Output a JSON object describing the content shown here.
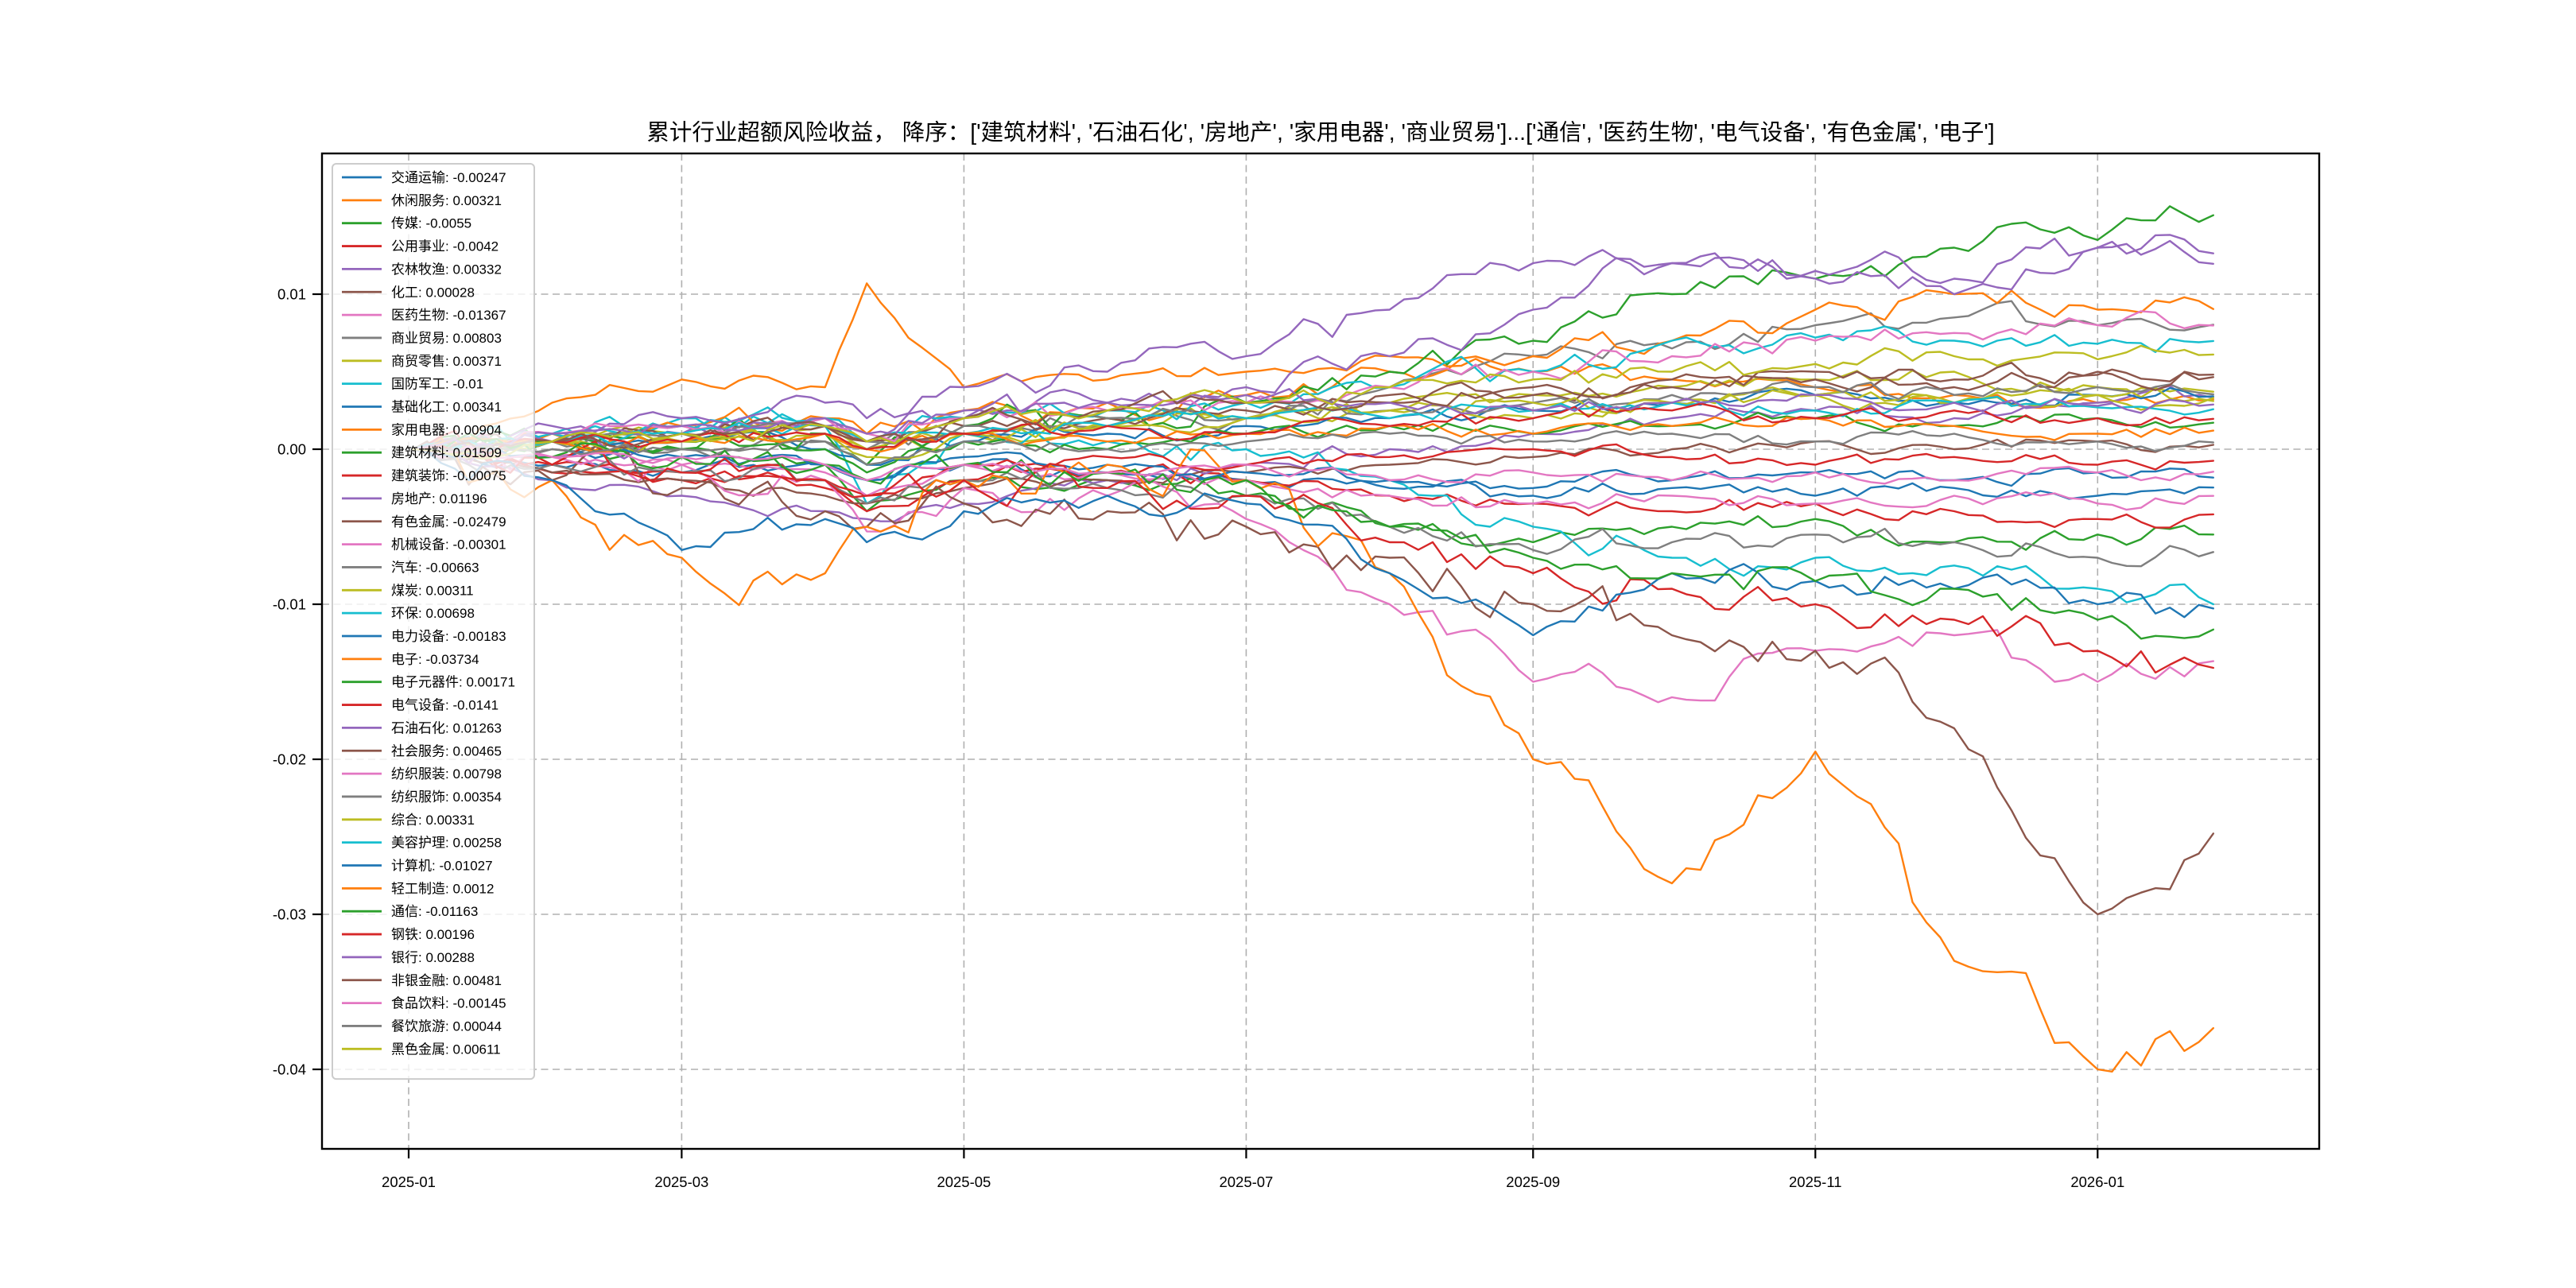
{
  "figure": {
    "background": "#ffffff",
    "plot_border_color": "#000000",
    "grid_color": "#b0b0b0",
    "legend_border_color": "#cccccc",
    "legend_background": "rgba(255,255,255,0.8)"
  },
  "chart_data": {
    "type": "line",
    "title": "累计行业超额风险收益， 降序：['建筑材料', '石油石化', '房地产', '家用电器', '商业贸易']...['通信', '医药生物', '电气设备', '有色金属', '电子']",
    "xlabel": "",
    "ylabel": "",
    "grid": true,
    "grid_style": "dashed",
    "legend_position": "upper-left",
    "ylim": [
      -0.0452,
      0.0192
    ],
    "x_tick_labels": [
      "2025-01",
      "2025-03",
      "2025-05",
      "2025-07",
      "2025-09",
      "2025-11",
      "2026-01"
    ],
    "x_tick_dates": [
      "2025-01-01",
      "2025-03-01",
      "2025-05-01",
      "2025-07-01",
      "2025-09-01",
      "2025-11-01",
      "2026-01-01"
    ],
    "y_ticks": [
      {
        "label": "0.01",
        "value": 0.01
      },
      {
        "label": "0.00",
        "value": 0.0
      },
      {
        "label": "-0.01",
        "value": -0.01
      },
      {
        "label": "-0.02",
        "value": -0.02
      },
      {
        "label": "-0.03",
        "value": -0.03
      },
      {
        "label": "-0.04",
        "value": -0.04
      }
    ],
    "x": [
      "2025-01-02",
      "2025-02-01",
      "2025-03-01",
      "2025-04-01",
      "2025-04-10",
      "2025-05-01",
      "2025-06-01",
      "2025-07-01",
      "2025-08-01",
      "2025-09-01",
      "2025-10-01",
      "2025-11-01",
      "2025-12-01",
      "2026-01-01",
      "2026-01-26"
    ],
    "series": [
      {
        "name": "交通运输",
        "legend_value": "-0.00247",
        "color": "#1f77b4",
        "values": [
          0,
          -0.001,
          -0.0015,
          -0.001,
          -0.002,
          -0.001,
          -0.0015,
          -0.002,
          -0.0025,
          -0.003,
          -0.0025,
          -0.003,
          -0.0025,
          -0.003,
          -0.00247
        ]
      },
      {
        "name": "休闲服务",
        "legend_value": "0.00321",
        "color": "#ff7f0e",
        "values": [
          0,
          0.003,
          0.0045,
          0.004,
          0.0107,
          0.004,
          0.0045,
          0.005,
          0.006,
          0.005,
          0.0045,
          0.004,
          0.0035,
          0.003,
          0.00321
        ]
      },
      {
        "name": "传媒",
        "legend_value": "-0.0055",
        "color": "#2ca02c",
        "values": [
          0,
          0.0005,
          0,
          -0.001,
          -0.004,
          -0.002,
          -0.002,
          -0.003,
          -0.005,
          -0.006,
          -0.005,
          -0.0045,
          -0.006,
          -0.0055,
          -0.0055
        ]
      },
      {
        "name": "公用事业",
        "legend_value": "-0.0042",
        "color": "#d62728",
        "values": [
          0,
          -0.0015,
          -0.002,
          -0.0025,
          -0.004,
          -0.002,
          -0.0015,
          -0.002,
          -0.003,
          -0.0035,
          -0.004,
          -0.0035,
          -0.004,
          -0.0045,
          -0.0042
        ]
      },
      {
        "name": "农林牧渔",
        "legend_value": "0.00332",
        "color": "#9467bd",
        "values": [
          0,
          -0.002,
          -0.003,
          -0.004,
          -0.0045,
          -0.0035,
          -0.002,
          -0.001,
          0,
          0.001,
          0.002,
          0.0025,
          0.002,
          0.003,
          0.00332
        ]
      },
      {
        "name": "化工",
        "legend_value": "0.00028",
        "color": "#8c564b",
        "values": [
          0,
          -0.0015,
          -0.002,
          -0.003,
          -0.0035,
          -0.0025,
          -0.002,
          -0.0015,
          -0.001,
          -0.0005,
          0,
          0.0005,
          0,
          0.0005,
          0.00028
        ]
      },
      {
        "name": "医药生物",
        "legend_value": "-0.01367",
        "color": "#e377c2",
        "values": [
          0,
          -0.0005,
          -0.001,
          -0.002,
          -0.0053,
          -0.0025,
          -0.003,
          -0.0045,
          -0.01,
          -0.015,
          -0.016,
          -0.013,
          -0.012,
          -0.015,
          -0.01367
        ]
      },
      {
        "name": "商业贸易",
        "legend_value": "0.00803",
        "color": "#7f7f7f",
        "values": [
          0,
          0,
          0,
          0.0005,
          0,
          0.001,
          0.0015,
          0.002,
          0.004,
          0.006,
          0.0065,
          0.008,
          0.0085,
          0.008,
          0.00803
        ]
      },
      {
        "name": "商贸零售",
        "legend_value": "0.00371",
        "color": "#bcbd22",
        "values": [
          0,
          0.0005,
          0.001,
          0.0015,
          0,
          0.001,
          0.0015,
          0.002,
          0.003,
          0.0035,
          0.004,
          0.0045,
          0.005,
          0.004,
          0.00371
        ]
      },
      {
        "name": "国防军工",
        "legend_value": "-0.01",
        "color": "#17becf",
        "values": [
          0,
          0.001,
          0.002,
          0.0015,
          -0.0035,
          0.001,
          0.0005,
          0,
          -0.002,
          -0.005,
          -0.007,
          -0.007,
          -0.0075,
          -0.009,
          -0.01
        ]
      },
      {
        "name": "基础化工",
        "legend_value": "0.00341",
        "color": "#1f77b4",
        "values": [
          0,
          0.0005,
          0.0005,
          0,
          -0.001,
          0.0005,
          0.001,
          0.0015,
          0.002,
          0.0025,
          0.003,
          0.0035,
          0.003,
          0.0035,
          0.00341
        ]
      },
      {
        "name": "家用电器",
        "legend_value": "0.00904",
        "color": "#ff7f0e",
        "values": [
          0,
          0.001,
          0.0015,
          0.002,
          0.001,
          0.0025,
          0.003,
          0.0035,
          0.005,
          0.006,
          0.007,
          0.009,
          0.01,
          0.009,
          0.00904
        ]
      },
      {
        "name": "建筑材料",
        "legend_value": "0.01509",
        "color": "#2ca02c",
        "values": [
          0,
          0.0005,
          0,
          0.001,
          -0.001,
          0.0015,
          0.002,
          0.003,
          0.005,
          0.007,
          0.01,
          0.011,
          0.013,
          0.0135,
          0.01509
        ]
      },
      {
        "name": "建筑装饰",
        "legend_value": "-0.00075",
        "color": "#d62728",
        "values": [
          0,
          -0.001,
          -0.0015,
          -0.002,
          -0.003,
          -0.001,
          -0.0005,
          -0.001,
          -0.0005,
          0,
          -0.0005,
          -0.001,
          -0.0005,
          -0.001,
          -0.00075
        ]
      },
      {
        "name": "房地产",
        "legend_value": "0.01196",
        "color": "#9467bd",
        "values": [
          0,
          0.0005,
          0.001,
          0.0015,
          0.0005,
          0.002,
          0.003,
          0.004,
          0.006,
          0.009,
          0.012,
          0.011,
          0.01,
          0.013,
          0.01196
        ]
      },
      {
        "name": "有色金属",
        "legend_value": "-0.02479",
        "color": "#8c564b",
        "values": [
          0,
          -0.002,
          -0.0025,
          -0.004,
          -0.005,
          -0.0035,
          -0.004,
          -0.005,
          -0.007,
          -0.01,
          -0.012,
          -0.013,
          -0.018,
          -0.03,
          -0.02479
        ]
      },
      {
        "name": "机械设备",
        "legend_value": "-0.00301",
        "color": "#e377c2",
        "values": [
          0,
          -0.0005,
          -0.001,
          -0.0015,
          -0.003,
          -0.001,
          -0.0015,
          -0.002,
          -0.003,
          -0.0035,
          -0.003,
          -0.0035,
          -0.003,
          -0.0035,
          -0.00301
        ]
      },
      {
        "name": "汽车",
        "legend_value": "-0.00663",
        "color": "#7f7f7f",
        "values": [
          0,
          -0.001,
          -0.0015,
          -0.002,
          -0.0035,
          -0.002,
          -0.0025,
          -0.003,
          -0.005,
          -0.0065,
          -0.006,
          -0.0055,
          -0.006,
          -0.007,
          -0.00663
        ]
      },
      {
        "name": "煤炭",
        "legend_value": "0.00311",
        "color": "#bcbd22",
        "values": [
          0,
          0.0005,
          0.0005,
          0.001,
          0,
          0.001,
          0.0015,
          0.002,
          0.0025,
          0.002,
          0.003,
          0.0035,
          0.003,
          0.0035,
          0.00311
        ]
      },
      {
        "name": "环保",
        "legend_value": "0.00698",
        "color": "#17becf",
        "values": [
          0,
          0.001,
          0.0015,
          0.002,
          0.0005,
          0.002,
          0.0025,
          0.003,
          0.004,
          0.005,
          0.007,
          0.0072,
          0.007,
          0.0068,
          0.00698
        ]
      },
      {
        "name": "电力设备",
        "legend_value": "-0.00183",
        "color": "#1f77b4",
        "values": [
          0,
          -0.0005,
          -0.0005,
          -0.001,
          -0.002,
          -0.0005,
          -0.001,
          -0.0015,
          -0.002,
          -0.0025,
          -0.002,
          -0.0015,
          -0.002,
          -0.0015,
          -0.00183
        ]
      },
      {
        "name": "电子",
        "legend_value": "-0.03734",
        "color": "#ff7f0e",
        "values": [
          0,
          -0.002,
          -0.007,
          -0.008,
          -0.005,
          -0.002,
          -0.001,
          -0.002,
          -0.008,
          -0.02,
          -0.028,
          -0.0195,
          -0.033,
          -0.04,
          -0.03734
        ]
      },
      {
        "name": "电子元器件",
        "legend_value": "0.00171",
        "color": "#2ca02c",
        "values": [
          0,
          0.0005,
          0.0005,
          0,
          -0.0015,
          0.0005,
          0,
          0.001,
          0.0015,
          0.001,
          0.0015,
          0.002,
          0.0015,
          0.002,
          0.00171
        ]
      },
      {
        "name": "电气设备",
        "legend_value": "-0.0141",
        "color": "#d62728",
        "values": [
          0,
          -0.001,
          -0.0015,
          -0.002,
          -0.003,
          -0.002,
          -0.0025,
          -0.003,
          -0.006,
          -0.008,
          -0.009,
          -0.01,
          -0.011,
          -0.013,
          -0.0141
        ]
      },
      {
        "name": "石油石化",
        "legend_value": "0.01263",
        "color": "#9467bd",
        "values": [
          0,
          0.0015,
          0.002,
          0.003,
          0.002,
          0.004,
          0.005,
          0.006,
          0.009,
          0.012,
          0.012,
          0.0115,
          0.011,
          0.013,
          0.01263
        ]
      },
      {
        "name": "社会服务",
        "legend_value": "0.00465",
        "color": "#8c564b",
        "values": [
          0,
          0.0005,
          0.001,
          0.0015,
          0.0005,
          0.0015,
          0.002,
          0.0025,
          0.003,
          0.0035,
          0.004,
          0.0045,
          0.004,
          0.0048,
          0.00465
        ]
      },
      {
        "name": "纺织服装",
        "legend_value": "0.00798",
        "color": "#e377c2",
        "values": [
          0,
          0.001,
          0.0015,
          0.002,
          0.001,
          0.002,
          0.0025,
          0.003,
          0.004,
          0.005,
          0.006,
          0.007,
          0.0075,
          0.008,
          0.00798
        ]
      },
      {
        "name": "纺织服饰",
        "legend_value": "0.00354",
        "color": "#7f7f7f",
        "values": [
          0,
          0.0005,
          0.001,
          0.0015,
          0.0005,
          0.0015,
          0.002,
          0.002,
          0.0025,
          0.003,
          0.0035,
          0.004,
          0.0035,
          0.004,
          0.00354
        ]
      },
      {
        "name": "综合",
        "legend_value": "0.00331",
        "color": "#bcbd22",
        "values": [
          0,
          0.0005,
          0.0005,
          0.001,
          -0.0005,
          0.001,
          0.0015,
          0.002,
          0.0025,
          0.003,
          0.003,
          0.0035,
          0.003,
          0.0035,
          0.00331
        ]
      },
      {
        "name": "美容护理",
        "legend_value": "0.00258",
        "color": "#17becf",
        "values": [
          0,
          0.0005,
          0.001,
          0.0015,
          0.0005,
          0.001,
          0.0015,
          0.002,
          0.002,
          0.0025,
          0.003,
          0.0025,
          0.003,
          0.0027,
          0.00258
        ]
      },
      {
        "name": "计算机",
        "legend_value": "-0.01027",
        "color": "#1f77b4",
        "values": [
          0,
          -0.002,
          -0.0065,
          -0.0045,
          -0.006,
          -0.004,
          -0.003,
          -0.0035,
          -0.008,
          -0.012,
          -0.008,
          -0.0085,
          -0.009,
          -0.01,
          -0.01027
        ]
      },
      {
        "name": "轻工制造",
        "legend_value": "0.0012",
        "color": "#ff7f0e",
        "values": [
          0,
          0.0005,
          0.0005,
          0.001,
          0,
          0.001,
          0.0005,
          0.001,
          0.0015,
          0.001,
          0.0015,
          0.002,
          0.0015,
          0.001,
          0.0012
        ]
      },
      {
        "name": "通信",
        "legend_value": "-0.01163",
        "color": "#2ca02c",
        "values": [
          0,
          -0.0005,
          -0.0005,
          -0.001,
          -0.002,
          -0.001,
          -0.0015,
          -0.002,
          -0.005,
          -0.007,
          -0.008,
          -0.0085,
          -0.009,
          -0.011,
          -0.01163
        ]
      },
      {
        "name": "钢铁",
        "legend_value": "0.00196",
        "color": "#d62728",
        "values": [
          0,
          0.0005,
          0.0005,
          0.001,
          0,
          0.001,
          0.0015,
          0.001,
          0.0015,
          0.002,
          0.0025,
          0.002,
          0.0025,
          0.002,
          0.00196
        ]
      },
      {
        "name": "银行",
        "legend_value": "0.00288",
        "color": "#9467bd",
        "values": [
          0,
          0.001,
          0.0015,
          0.002,
          0.001,
          0.0025,
          0.003,
          0.0035,
          0.003,
          0.0025,
          0.003,
          0.0035,
          0.003,
          0.0028,
          0.00288
        ]
      },
      {
        "name": "非银金融",
        "legend_value": "0.00481",
        "color": "#8c564b",
        "values": [
          0,
          0.0005,
          0.001,
          0.0015,
          0.0005,
          0.002,
          0.0025,
          0.003,
          0.0035,
          0.004,
          0.0045,
          0.005,
          0.0045,
          0.005,
          0.00481
        ]
      },
      {
        "name": "食品饮料",
        "legend_value": "-0.00145",
        "color": "#e377c2",
        "values": [
          0,
          -0.0005,
          -0.0005,
          -0.001,
          -0.002,
          -0.001,
          -0.0015,
          -0.001,
          -0.002,
          -0.0015,
          -0.002,
          -0.0015,
          -0.002,
          -0.0015,
          -0.00145
        ]
      },
      {
        "name": "餐饮旅游",
        "legend_value": "0.00044",
        "color": "#7f7f7f",
        "values": [
          0,
          0,
          0,
          0.0005,
          -0.001,
          0.0005,
          0,
          0.0005,
          0.001,
          0.0005,
          0.001,
          0.0005,
          0.001,
          0.0005,
          0.00044
        ]
      },
      {
        "name": "黑色金属",
        "legend_value": "0.00611",
        "color": "#bcbd22",
        "values": [
          0,
          0.0005,
          0.001,
          0.0015,
          0.0005,
          0.002,
          0.0025,
          0.003,
          0.004,
          0.0045,
          0.005,
          0.0055,
          0.006,
          0.0058,
          0.00611
        ]
      }
    ]
  }
}
